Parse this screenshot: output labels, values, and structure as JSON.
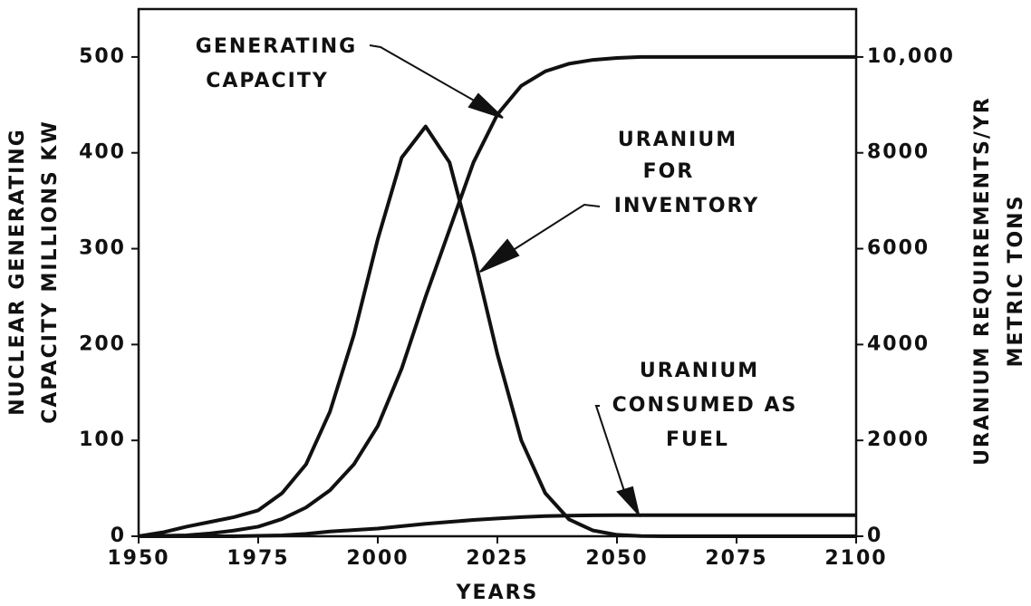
{
  "chart_data": {
    "type": "line",
    "xlabel": "YEARS",
    "ylabel": [
      "NUCLEAR GENERATING",
      "CAPACITY MILLIONS KW"
    ],
    "y2label": [
      "URANIUM REQUIREMENTS/YR",
      "METRIC TONS"
    ],
    "x": [
      1950,
      1955,
      1960,
      1965,
      1970,
      1975,
      1980,
      1985,
      1990,
      1995,
      2000,
      2005,
      2010,
      2015,
      2020,
      2025,
      2030,
      2035,
      2040,
      2045,
      2050,
      2055,
      2060,
      2065,
      2070,
      2075,
      2080,
      2085,
      2090,
      2095,
      2100
    ],
    "xlim": [
      1950,
      2100
    ],
    "xticks": [
      1950,
      1975,
      2000,
      2025,
      2050,
      2075,
      2100
    ],
    "ylim": [
      0,
      550
    ],
    "yticks": [
      0,
      100,
      200,
      300,
      400,
      500
    ],
    "y2lim": [
      0,
      11000
    ],
    "y2ticks": [
      0,
      2000,
      4000,
      6000,
      8000,
      {
        "value": 10000,
        "label": "10,000"
      }
    ],
    "series": [
      {
        "name": "GENERATING CAPACITY",
        "color": "#111111",
        "axis": "y",
        "values": [
          0,
          0.5,
          1,
          3,
          6,
          10,
          18,
          30,
          48,
          75,
          115,
          175,
          250,
          320,
          390,
          440,
          470,
          485,
          493,
          497,
          499,
          500,
          500,
          500,
          500,
          500,
          500,
          500,
          500,
          500,
          500
        ]
      },
      {
        "name": "URANIUM FOR INVENTORY",
        "color": "#111111",
        "axis": "y2",
        "values": [
          0,
          80,
          200,
          300,
          400,
          540,
          900,
          1500,
          2600,
          4200,
          6200,
          7900,
          8550,
          7800,
          5900,
          3800,
          2000,
          900,
          350,
          120,
          30,
          5,
          0,
          0,
          0,
          0,
          0,
          0,
          0,
          0,
          0
        ]
      },
      {
        "name": "URANIUM CONSUMED AS FUEL",
        "color": "#111111",
        "axis": "y2",
        "values": [
          0,
          0,
          0,
          0,
          0,
          10,
          20,
          50,
          100,
          130,
          160,
          210,
          260,
          300,
          340,
          370,
          400,
          420,
          430,
          436,
          440,
          440,
          440,
          440,
          440,
          440,
          440,
          440,
          440,
          440,
          440
        ]
      }
    ],
    "annotations": [
      {
        "lines": [
          "GENERATING",
          "CAPACITY"
        ]
      },
      {
        "lines": [
          "URANIUM",
          "FOR",
          "INVENTORY"
        ]
      },
      {
        "lines": [
          "URANIUM",
          "CONSUMED AS",
          "FUEL"
        ]
      }
    ]
  }
}
